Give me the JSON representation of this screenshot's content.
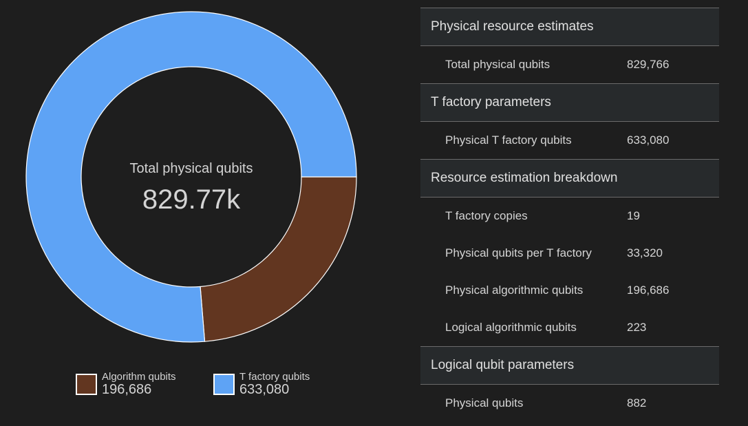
{
  "chart_data": {
    "type": "pie",
    "center_label": "Total physical qubits",
    "center_value": "829.77k",
    "slices": [
      {
        "name": "Algorithm qubits",
        "value": 196686,
        "value_text": "196,686",
        "color": "#623620"
      },
      {
        "name": "T factory qubits",
        "value": 633080,
        "value_text": "633,080",
        "color": "#5ea3f5"
      }
    ]
  },
  "table": {
    "sections": [
      {
        "title": "Physical resource estimates",
        "rows": [
          {
            "label": "Total physical qubits",
            "value": "829,766"
          }
        ]
      },
      {
        "title": "T factory parameters",
        "rows": [
          {
            "label": "Physical T factory qubits",
            "value": "633,080"
          }
        ]
      },
      {
        "title": "Resource estimation breakdown",
        "rows": [
          {
            "label": "T factory copies",
            "value": "19"
          },
          {
            "label": "Physical qubits per T factory",
            "value": "33,320"
          },
          {
            "label": "Physical algorithmic qubits",
            "value": "196,686"
          },
          {
            "label": "Logical algorithmic qubits",
            "value": "223"
          }
        ]
      },
      {
        "title": "Logical qubit parameters",
        "rows": [
          {
            "label": "Physical qubits",
            "value": "882"
          }
        ]
      }
    ]
  }
}
